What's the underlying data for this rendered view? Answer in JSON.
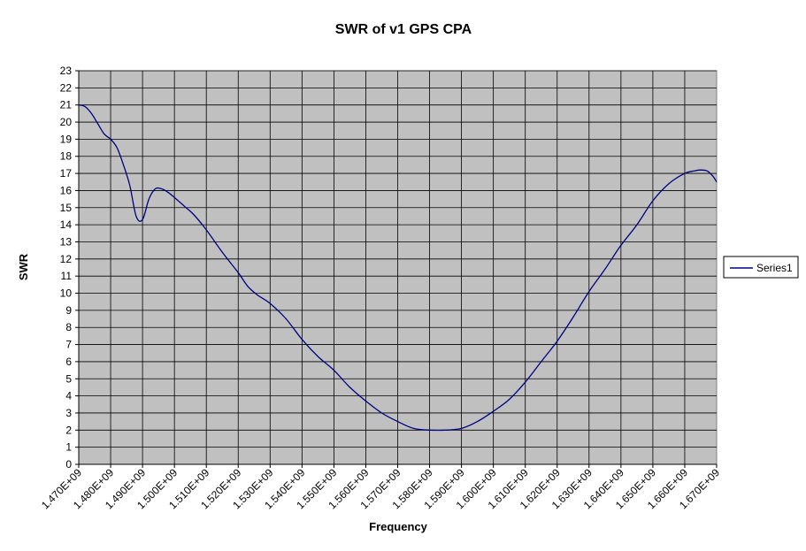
{
  "chart_data": {
    "type": "line",
    "title": "SWR of v1 GPS CPA",
    "xlabel": "Frequency",
    "ylabel": "SWR",
    "xlim": [
      1470000000,
      1670000000
    ],
    "ylim": [
      0,
      23
    ],
    "x_tick_labels": [
      "1.470E+09",
      "1.480E+09",
      "1.490E+09",
      "1.500E+09",
      "1.510E+09",
      "1.520E+09",
      "1.530E+09",
      "1.540E+09",
      "1.550E+09",
      "1.560E+09",
      "1.570E+09",
      "1.580E+09",
      "1.590E+09",
      "1.600E+09",
      "1.610E+09",
      "1.620E+09",
      "1.630E+09",
      "1.640E+09",
      "1.650E+09",
      "1.660E+09",
      "1.670E+09"
    ],
    "y_ticks": [
      0,
      1,
      2,
      3,
      4,
      5,
      6,
      7,
      8,
      9,
      10,
      11,
      12,
      13,
      14,
      15,
      16,
      17,
      18,
      19,
      20,
      21,
      22,
      23
    ],
    "grid": true,
    "plot_background": "#c0c0c0",
    "legend_position": "right",
    "series": [
      {
        "name": "Series1",
        "color": "#000080",
        "x": [
          1470000000,
          1472000000,
          1474000000,
          1476000000,
          1478000000,
          1480000000,
          1482000000,
          1484000000,
          1486000000,
          1488000000,
          1490000000,
          1492000000,
          1494000000,
          1496000000,
          1498000000,
          1500000000,
          1503000000,
          1506000000,
          1510000000,
          1515000000,
          1520000000,
          1523000000,
          1526000000,
          1530000000,
          1535000000,
          1540000000,
          1545000000,
          1550000000,
          1555000000,
          1560000000,
          1565000000,
          1570000000,
          1575000000,
          1580000000,
          1585000000,
          1590000000,
          1595000000,
          1600000000,
          1605000000,
          1610000000,
          1615000000,
          1620000000,
          1625000000,
          1630000000,
          1635000000,
          1640000000,
          1645000000,
          1650000000,
          1655000000,
          1660000000,
          1663000000,
          1665000000,
          1667000000,
          1668000000,
          1669000000,
          1670000000
        ],
        "y": [
          21,
          20.9,
          20.5,
          19.9,
          19.3,
          19.0,
          18.5,
          17.5,
          16.3,
          14.5,
          14.3,
          15.5,
          16.1,
          16.1,
          15.9,
          15.6,
          15.1,
          14.6,
          13.7,
          12.4,
          11.2,
          10.4,
          9.9,
          9.4,
          8.5,
          7.3,
          6.3,
          5.5,
          4.5,
          3.7,
          3.0,
          2.5,
          2.1,
          2.0,
          2.0,
          2.1,
          2.5,
          3.1,
          3.8,
          4.8,
          6.0,
          7.2,
          8.6,
          10.1,
          11.4,
          12.8,
          14.0,
          15.4,
          16.4,
          17.0,
          17.15,
          17.2,
          17.15,
          17.0,
          16.8,
          16.5
        ]
      }
    ]
  }
}
